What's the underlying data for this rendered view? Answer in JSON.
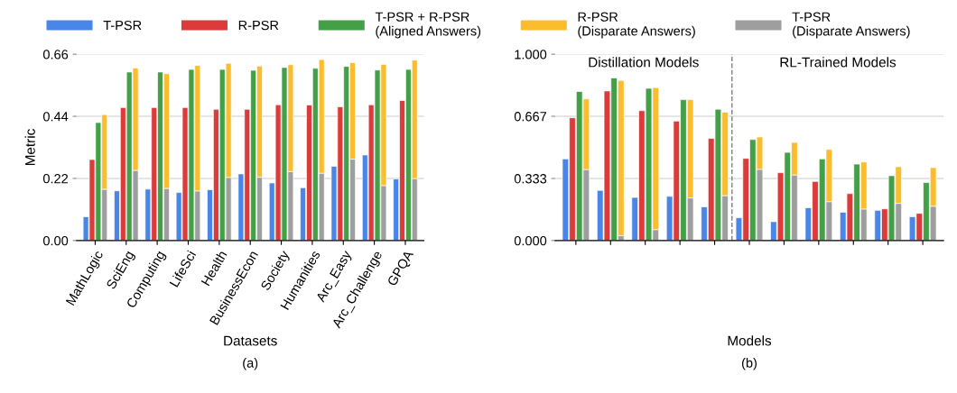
{
  "chart_data": [
    {
      "type": "bar",
      "xlabel": "Datasets",
      "ylabel": "Metric",
      "subtitle": "(a)",
      "legend": "top",
      "grid": "y",
      "categories": [
        "MathLogic",
        "SciEng",
        "Computing",
        "LifeSci",
        "Health",
        "BusinessEcon",
        "Society",
        "Humanities",
        "Arc_Easy",
        "Arc_Challenge",
        "GPQA"
      ],
      "ylim": [
        0,
        0.66
      ],
      "yticks": [
        {
          "value": 0,
          "label": "0.00"
        },
        0.22,
        0.44,
        0.66
      ],
      "series": [
        {
          "name": "T-PSR",
          "color": "#4a86e8",
          "values": [
            0.084,
            0.176,
            0.182,
            0.17,
            0.18,
            0.236,
            0.204,
            0.187,
            0.263,
            0.303,
            0.218
          ]
        },
        {
          "name": "R-PSR",
          "color": "#dc3b3b",
          "values": [
            0.287,
            0.471,
            0.471,
            0.471,
            0.465,
            0.465,
            0.481,
            0.48,
            0.474,
            0.481,
            0.496
          ]
        },
        {
          "name": "T-PSR + R-PSR\n(Aligned Answers)",
          "color": "#43a047",
          "values": [
            0.418,
            0.597,
            0.597,
            0.606,
            0.606,
            0.603,
            0.613,
            0.61,
            0.617,
            0.604,
            0.606
          ]
        },
        {
          "name": "R-PSR\n(Disparate Answers)",
          "color": "#fbbc2d",
          "values": [
            0.265,
            0.363,
            0.407,
            0.445,
            0.405,
            0.394,
            0.379,
            0.403,
            0.342,
            0.43,
            0.42
          ],
          "base": [
            0.181,
            0.248,
            0.184,
            0.175,
            0.223,
            0.224,
            0.244,
            0.238,
            0.288,
            0.194,
            0.219
          ]
        },
        {
          "name": "T-PSR\n(Disparate Answers)",
          "color": "#9e9e9e",
          "values": [
            0.181,
            0.248,
            0.184,
            0.175,
            0.223,
            0.224,
            0.244,
            0.238,
            0.288,
            0.194,
            0.219
          ]
        }
      ]
    },
    {
      "type": "bar",
      "xlabel": "Models",
      "subtitle": "(b)",
      "grid": "y",
      "categories": [
        null,
        null,
        null,
        null,
        null,
        null,
        null,
        null,
        null,
        null,
        null
      ],
      "ylim": [
        0,
        1
      ],
      "yticks": [
        {
          "value": 0,
          "label": "0.000"
        },
        {
          "value": 0.333,
          "label": "0.333"
        },
        {
          "value": 0.667,
          "label": "0.667"
        },
        {
          "value": 1,
          "label": "1.000"
        }
      ],
      "annotations": [
        "Distillation Models",
        "RL-Trained Models"
      ],
      "series": [
        {
          "color": "#4a86e8",
          "values": [
            0.438,
            0.269,
            0.231,
            0.237,
            0.181,
            0.122,
            0.101,
            0.176,
            0.152,
            0.162,
            0.128
          ]
        },
        {
          "color": "#dc3b3b",
          "values": [
            0.659,
            0.803,
            0.697,
            0.641,
            0.548,
            0.441,
            0.364,
            0.317,
            0.252,
            0.17,
            0.146
          ]
        },
        {
          "color": "#43a047",
          "values": [
            0.8,
            0.873,
            0.817,
            0.756,
            0.705,
            0.542,
            0.473,
            0.438,
            0.41,
            0.348,
            0.311
          ]
        },
        {
          "color": "#fbbc2d",
          "values": [
            0.38,
            0.833,
            0.763,
            0.528,
            0.449,
            0.175,
            0.176,
            0.281,
            0.253,
            0.197,
            0.208
          ],
          "base": [
            0.38,
            0.026,
            0.058,
            0.228,
            0.24,
            0.381,
            0.351,
            0.208,
            0.168,
            0.199,
            0.183
          ]
        },
        {
          "color": "#9e9e9e",
          "values": [
            0.38,
            0.026,
            0.058,
            0.228,
            0.24,
            0.381,
            0.351,
            0.208,
            0.168,
            0.199,
            0.183
          ]
        }
      ]
    }
  ]
}
